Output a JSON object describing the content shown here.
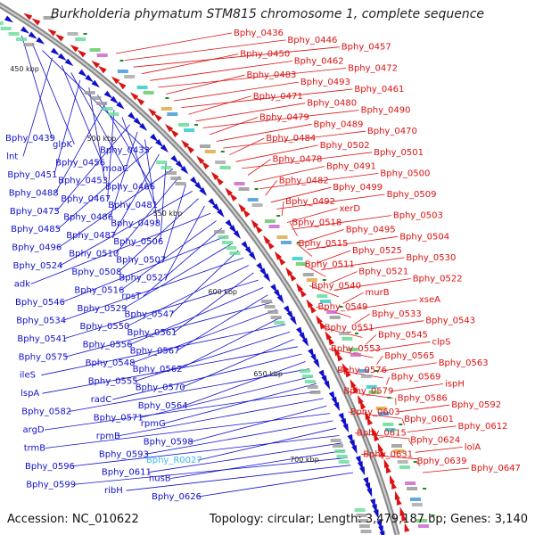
{
  "title": "Burkholderia phymatum STM815 chromosome 1, complete sequence",
  "accession": "Accession: NC_010622",
  "summary": "Topology: circular; Length: 3,479,187 bp; Genes: 3,140",
  "colors": {
    "left": "#1010cc",
    "right": "#dd1111",
    "highlight": "#33bbee",
    "backbone": "#888888"
  },
  "kbp_ticks": [
    "450 kbp",
    "500 kbp",
    "550 kbp",
    "600 kbp",
    "650 kbp",
    "700 kbp"
  ],
  "left_labels": [
    "Bphy_0439",
    "glpK",
    "Bphy_0433",
    "lnt",
    "Bphy_0456",
    "moaC",
    "Bphy_0451",
    "Bphy_0453",
    "Bphy_0466",
    "Bphy_0488",
    "Bphy_0467",
    "Bphy_0481",
    "Bphy_0475",
    "Bphy_0486",
    "Bphy_0498",
    "Bphy_0485",
    "Bphy_0487",
    "Bphy_0506",
    "Bphy_0496",
    "Bphy_0510",
    "Bphy_0507",
    "Bphy_0524",
    "Bphy_0508",
    "Bphy_0527",
    "adk",
    "Bphy_0516",
    "rpsT",
    "Bphy_0546",
    "Bphy_0529",
    "Bphy_0547",
    "Bphy_0534",
    "Bphy_0550",
    "Bphy_0561",
    "Bphy_0541",
    "Bphy_0556",
    "Bphy_0567",
    "Bphy_0575",
    "Bphy_0548",
    "Bphy_0562",
    "ileS",
    "Bphy_0555",
    "Bphy_0570",
    "lspA",
    "radC",
    "Bphy_0564",
    "Bphy_0582",
    "Bphy_0571",
    "rpmG",
    "argD",
    "rpmB",
    "Bphy_0598",
    "trmB",
    "Bphy_0593",
    "Bphy_R0027",
    "Bphy_0596",
    "Bphy_0611",
    "nusB",
    "Bphy_0599",
    "ribH",
    "Bphy_0626"
  ],
  "right_labels": [
    "Bphy_0436",
    "Bphy_0446",
    "Bphy_0457",
    "Bphy_0450",
    "Bphy_0462",
    "Bphy_0472",
    "Bphy_0483",
    "Bphy_0493",
    "Bphy_0461",
    "Bphy_0471",
    "Bphy_0480",
    "Bphy_0490",
    "Bphy_0479",
    "Bphy_0489",
    "Bphy_0470",
    "Bphy_0484",
    "Bphy_0502",
    "Bphy_0501",
    "Bphy_0478",
    "Bphy_0491",
    "Bphy_0500",
    "Bphy_0482",
    "Bphy_0499",
    "Bphy_0509",
    "Bphy_0492",
    "xerD",
    "Bphy_0503",
    "Bphy_0518",
    "Bphy_0495",
    "Bphy_0504",
    "Bphy_0515",
    "Bphy_0525",
    "Bphy_0530",
    "Bphy_0511",
    "Bphy_0521",
    "Bphy_0522",
    "Bphy_0540",
    "murB",
    "xseA",
    "Bphy_0549",
    "Bphy_0533",
    "Bphy_0543",
    "Bphy_0551",
    "Bphy_0545",
    "clpS",
    "Bphy_0553",
    "Bphy_0565",
    "Bphy_0563",
    "Bphy_0576",
    "Bphy_0569",
    "ispH",
    "Bphy_0579",
    "Bphy_0586",
    "Bphy_0592",
    "Bphy_0603",
    "Bphy_0601",
    "Bphy_0612",
    "Bphy_0615",
    "Bphy_0624",
    "lolA",
    "Bphy_0631",
    "Bphy_0639",
    "Bphy_0647"
  ]
}
